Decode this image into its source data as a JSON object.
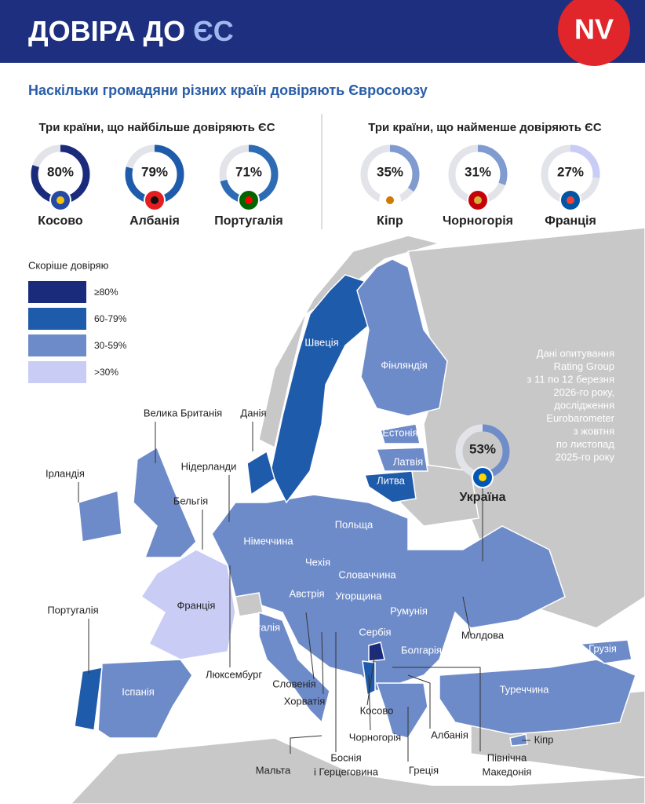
{
  "header": {
    "title": [
      "ДОВІРА ДО",
      "ЄС"
    ],
    "logo": "NV"
  },
  "subtitle": "Наскільки громадяни різних країн довіряють Євросоюзу",
  "top": {
    "title": "Три країни, що найбільше довіряють ЄС",
    "items": [
      {
        "name": "Косово",
        "value": 80,
        "label": "80%"
      },
      {
        "name": "Албанія",
        "value": 79,
        "label": "79%"
      },
      {
        "name": "Португалія",
        "value": 71,
        "label": "71%"
      }
    ]
  },
  "bottom": {
    "title": "Три країни, що найменше довіряють ЄС",
    "items": [
      {
        "name": "Кіпр",
        "value": 35,
        "label": "35%"
      },
      {
        "name": "Чорногорія",
        "value": 31,
        "label": "31%"
      },
      {
        "name": "Франція",
        "value": 27,
        "label": "27%"
      }
    ]
  },
  "ukraine": {
    "name": "Україна",
    "value": 53,
    "label": "53%"
  },
  "legend": {
    "title": "Скоріше довіряю",
    "items": [
      {
        "label": "≥80%",
        "color": "#1b2b7c"
      },
      {
        "label": "60-79%",
        "color": "#1f5bab"
      },
      {
        "label": "30-59%",
        "color": "#6e8bc9"
      },
      {
        "label": ">30%",
        "color": "#c9cdf6"
      }
    ]
  },
  "note": [
    "Дані опитування",
    "Rating Group",
    "з 11 по 12 березня",
    "2026-го року,",
    "дослідження",
    "Eurobarometer",
    "з жовтня",
    "по листопад",
    "2025-го року"
  ],
  "countries": [
    "Швеція",
    "Фінляндія",
    "Естонія",
    "Латвія",
    "Литва",
    "Велика Британія",
    "Данія",
    "Нідерланди",
    "Ірландія",
    "Бельгія",
    "Польща",
    "Німеччина",
    "Чехія",
    "Словаччина",
    "Австрія",
    "Угорщина",
    "Румунія",
    "Франція",
    "Португалія",
    "Італія",
    "Молдова",
    "Сербія",
    "Болгарія",
    "Грузія",
    "Люксембург",
    "Словенія",
    "Іспанія",
    "Туреччина",
    "Хорватія",
    "Косово",
    "Чорногорія",
    "Албанія",
    "Кіпр",
    "Мальта",
    [
      "Боснія",
      "і Герцеговина"
    ],
    "Греція",
    [
      "Північна",
      "Македонія"
    ]
  ]
}
